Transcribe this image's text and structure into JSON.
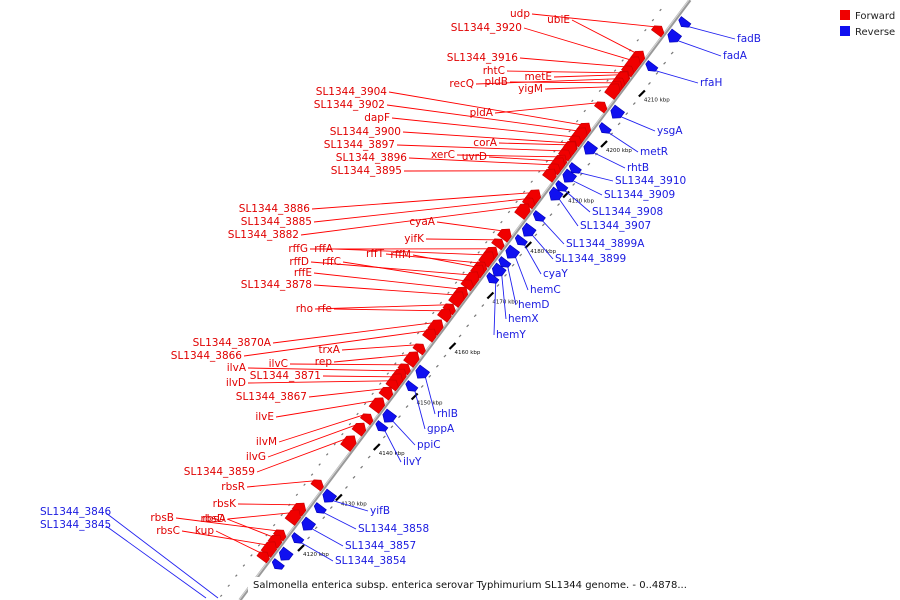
{
  "colors": {
    "forward": "#f00000",
    "reverse": "#1010f0",
    "axis": "#999999"
  },
  "legend": {
    "forward": "Forward",
    "reverse": "Reverse"
  },
  "footer": "Salmonella enterica subsp. enterica serovar Typhimurium SL1344 genome. - 0..4878...",
  "scale_ticks": [
    {
      "kbp": 4120,
      "label": "4120 kbp"
    },
    {
      "kbp": 4130,
      "label": "4130 kbp"
    },
    {
      "kbp": 4140,
      "label": "4140 kbp"
    },
    {
      "kbp": 4150,
      "label": "4150 kbp"
    },
    {
      "kbp": 4160,
      "label": "4160 kbp"
    },
    {
      "kbp": 4170,
      "label": "4170 kbp"
    },
    {
      "kbp": 4180,
      "label": "4180 kbp"
    },
    {
      "kbp": 4190,
      "label": "4190 kbp"
    },
    {
      "kbp": 4200,
      "label": "4200 kbp"
    },
    {
      "kbp": 4210,
      "label": "4210 kbp"
    }
  ],
  "forward_genes": [
    "udp",
    "ubiE",
    "SL1344_3920",
    "SL1344_3916",
    "rhtC",
    "metE",
    "recQ",
    "pldB",
    "yigM",
    "pldA",
    "SL1344_3904",
    "SL1344_3902",
    "dapF",
    "SL1344_3900",
    "corA",
    "SL1344_3897",
    "xerC",
    "uvrD",
    "SL1344_3896",
    "SL1344_3895",
    "SL1344_3886",
    "SL1344_3885",
    "cyaA",
    "SL1344_3882",
    "yifK",
    "rffG",
    "rffA",
    "rffT",
    "rffM",
    "rffD",
    "rffC",
    "rffE",
    "SL1344_3878",
    "rho",
    "rfe",
    "SL1344_3870A",
    "trxA",
    "SL1344_3866",
    "rep",
    "ilvC",
    "ilvA",
    "SL1344_3871",
    "ilvD",
    "SL1344_3867",
    "ilvE",
    "ilvM",
    "ilvG",
    "SL1344_3859",
    "rbsR",
    "rbsK",
    "rbsA",
    "rbsB",
    "rbsD",
    "rbsC",
    "kup"
  ],
  "reverse_genes": [
    "fadB",
    "fadA",
    "rfaH",
    "ysgA",
    "metR",
    "rhtB",
    "SL1344_3910",
    "SL1344_3909",
    "SL1344_3908",
    "SL1344_3907",
    "SL1344_3899A",
    "SL1344_3899",
    "cyaY",
    "hemC",
    "hemD",
    "hemX",
    "hemY",
    "rhlB",
    "gppA",
    "ppiC",
    "ilvY",
    "yifB",
    "SL1344_3858",
    "SL1344_3857",
    "SL1344_3854",
    "SL1344_3846",
    "SL1344_3845"
  ]
}
